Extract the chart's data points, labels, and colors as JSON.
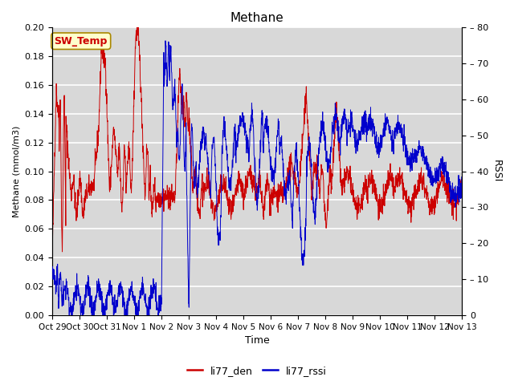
{
  "title": "Methane",
  "ylabel_left": "Methane (mmol/m3)",
  "ylabel_right": "RSSI",
  "xlabel": "Time",
  "ylim_left": [
    0.0,
    0.2
  ],
  "ylim_right": [
    0,
    80
  ],
  "yticks_left": [
    0.0,
    0.02,
    0.04,
    0.06,
    0.08,
    0.1,
    0.12,
    0.14,
    0.16,
    0.18,
    0.2
  ],
  "yticks_right": [
    0,
    10,
    20,
    30,
    40,
    50,
    60,
    70,
    80
  ],
  "color_red": "#cc0000",
  "color_blue": "#0000cc",
  "bg_color": "#d8d8d8",
  "legend_label1": "li77_den",
  "legend_label2": "li77_rssi",
  "annotation_text": "SW_Temp",
  "annotation_color": "#cc0000",
  "annotation_bg": "#ffffcc",
  "annotation_border": "#aa8800",
  "tick_labels": [
    "Oct 29",
    "Oct 30",
    "Oct 31",
    "Nov 1",
    "Nov 2",
    "Nov 3",
    "Nov 4",
    "Nov 5",
    "Nov 6",
    "Nov 7",
    "Nov 8",
    "Nov 9",
    "Nov 10",
    "Nov 11",
    "Nov 12",
    "Nov 13"
  ],
  "figsize": [
    6.4,
    4.8
  ],
  "dpi": 100
}
